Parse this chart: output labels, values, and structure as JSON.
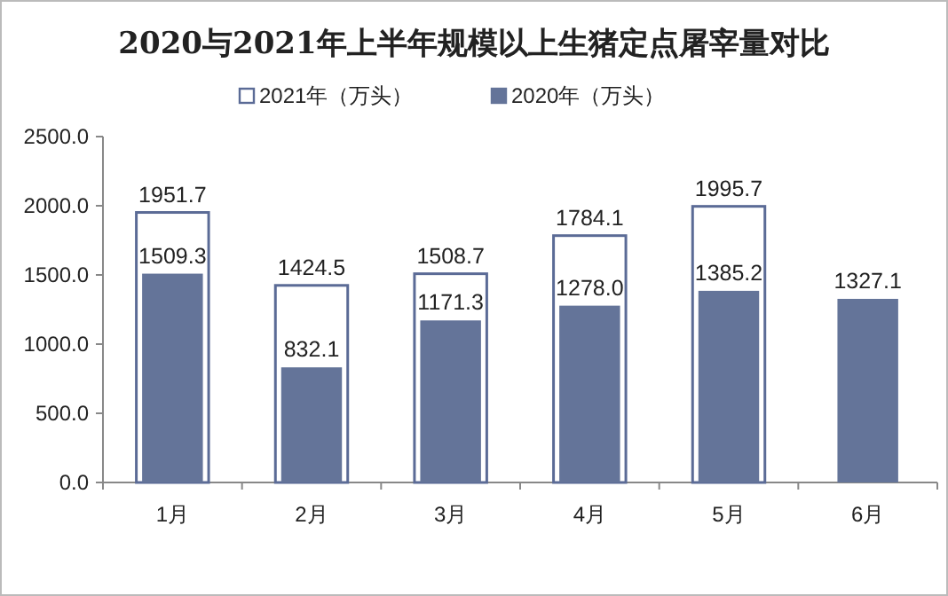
{
  "chart_data": {
    "type": "bar",
    "title": "2020与2021年上半年规模以上生猪定点屠宰量对比",
    "categories": [
      "1月",
      "2月",
      "3月",
      "4月",
      "5月",
      "6月"
    ],
    "series": [
      {
        "name": "2021年（万头）",
        "color": "#5b6b96",
        "values": [
          1951.7,
          1424.5,
          1508.7,
          1784.1,
          1995.7,
          null
        ],
        "value_labels": [
          "1951.7",
          "1424.5",
          "1508.7",
          "1784.1",
          "1995.7",
          null
        ]
      },
      {
        "name": "2020年（万头）",
        "color": "#647499",
        "values": [
          1509.3,
          832.1,
          1171.3,
          1278.0,
          1385.2,
          1327.1
        ],
        "value_labels": [
          "1509.3",
          "832.1",
          "1171.3",
          "1278.0",
          "1385.2",
          "1327.1"
        ]
      }
    ],
    "ylim": [
      0,
      2500
    ],
    "yticks": [
      {
        "value": 0,
        "label": "0.0"
      },
      {
        "value": 500,
        "label": "500.0"
      },
      {
        "value": 1000,
        "label": "1000.0"
      },
      {
        "value": 1500,
        "label": "1500.0"
      },
      {
        "value": 2000,
        "label": "2000.0"
      },
      {
        "value": 2500,
        "label": "2500.0"
      }
    ],
    "grid": false,
    "legend": "top"
  }
}
